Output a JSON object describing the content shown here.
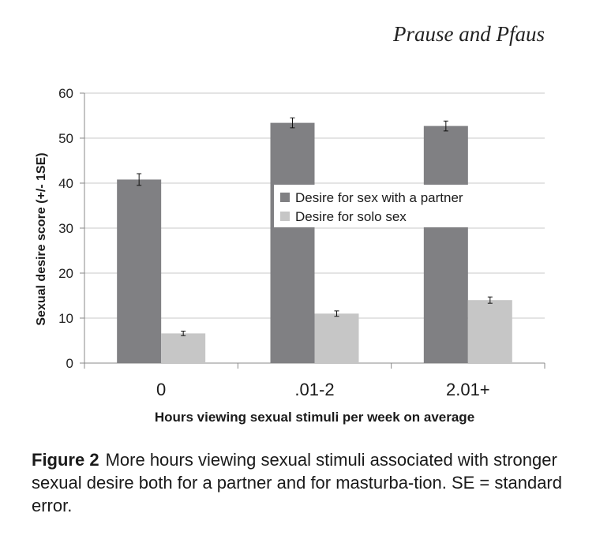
{
  "header": {
    "author_line": "Prause and Pfaus"
  },
  "caption": {
    "label": "Figure 2",
    "text": "More hours viewing sexual stimuli associated with stronger sexual desire both for a partner and for masturba-tion. SE = standard error."
  },
  "colors": {
    "partner": "#808083",
    "solo": "#c6c6c6",
    "grid": "#c8c8c8",
    "axis": "#888888"
  },
  "chart_data": {
    "type": "bar",
    "categories": [
      "0",
      ".01-2",
      "2.01+"
    ],
    "series": [
      {
        "name": "Desire for sex with a partner",
        "values": [
          40.8,
          53.4,
          52.7
        ],
        "errors": [
          1.3,
          1.1,
          1.1
        ]
      },
      {
        "name": "Desire for solo sex",
        "values": [
          6.6,
          11.0,
          14.0
        ],
        "errors": [
          0.5,
          0.6,
          0.7
        ]
      }
    ],
    "xlabel": "Hours viewing sexual stimuli per week on average",
    "ylabel": "Sexual desire score (+/- 1SE)",
    "ylim": [
      0,
      60
    ],
    "yticks": [
      "0",
      "10",
      "20",
      "30",
      "40",
      "50",
      "60"
    ],
    "grid": true,
    "legend_position": "center-right"
  }
}
